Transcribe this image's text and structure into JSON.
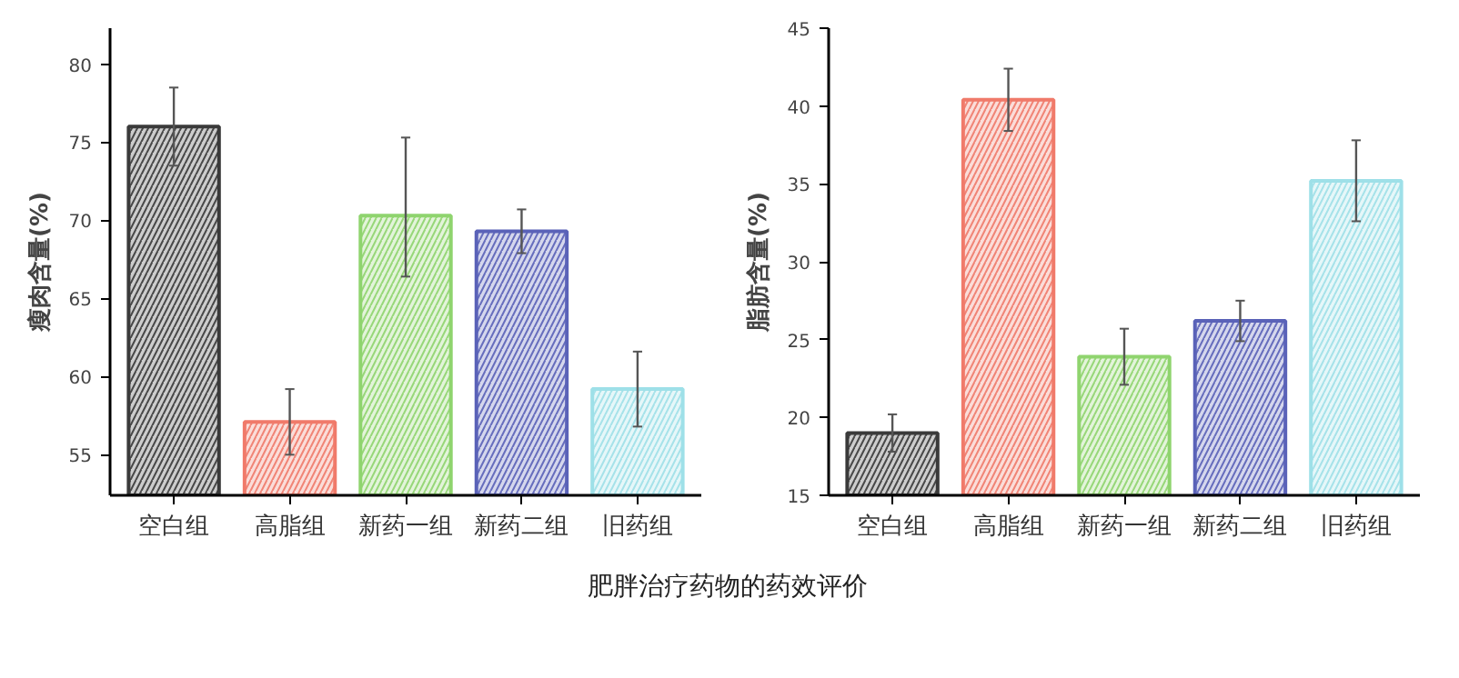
{
  "chart_data": [
    {
      "type": "bar",
      "ylabel": "瘦肉含量(%)",
      "categories": [
        "空白组",
        "高脂组",
        "新药一组",
        "新药二组",
        "旧药组"
      ],
      "values": [
        76.0,
        57.1,
        70.3,
        69.3,
        59.2
      ],
      "errors": [
        2.5,
        2.1,
        [
          66.4,
          75.3
        ],
        1.4,
        2.4
      ],
      "colors": [
        "#3a3a3a",
        "#f07a6a",
        "#8fd46e",
        "#5a62b8",
        "#9ee0e8"
      ],
      "ylim": [
        52.4,
        82.3
      ],
      "yticks": [
        55,
        60,
        65,
        70,
        75,
        80
      ],
      "grid": false,
      "annotations": [
        "肥胖治疗药物的药效评价"
      ]
    },
    {
      "type": "bar",
      "ylabel": "脂肪含量(%)",
      "categories": [
        "空白组",
        "高脂组",
        "新药一组",
        "新药二组",
        "旧药组"
      ],
      "values": [
        19.0,
        40.4,
        23.9,
        26.2,
        35.2
      ],
      "errors": [
        1.2,
        2.0,
        1.8,
        1.3,
        2.6
      ],
      "colors": [
        "#3a3a3a",
        "#f07a6a",
        "#8fd46e",
        "#5a62b8",
        "#9ee0e8"
      ],
      "ylim": [
        15,
        45
      ],
      "yticks": [
        15,
        20,
        25,
        30,
        35,
        40,
        45
      ],
      "grid": false
    }
  ]
}
